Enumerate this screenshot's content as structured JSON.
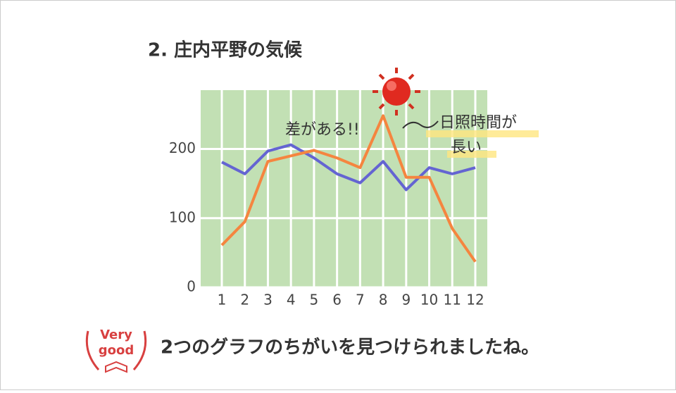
{
  "chart_data": {
    "type": "line",
    "title": "2. 庄内平野の気候",
    "categories": [
      "1",
      "2",
      "3",
      "4",
      "5",
      "6",
      "7",
      "8",
      "9",
      "10",
      "11",
      "12"
    ],
    "series": [
      {
        "color": "#6464d2",
        "values": [
          181,
          164,
          197,
          206,
          187,
          164,
          151,
          182,
          141,
          173,
          164,
          173
        ]
      },
      {
        "color": "#f5853f",
        "values": [
          61,
          95,
          182,
          190,
          198,
          187,
          173,
          248,
          159,
          159,
          85,
          37
        ]
      }
    ],
    "ylim": [
      0,
      285
    ],
    "yticks": [
      0,
      100,
      200
    ],
    "grid": true,
    "annotations": [
      "差がある!!",
      "日照時間が",
      "長い"
    ]
  },
  "stamp": [
    "Very",
    "good"
  ],
  "message": "2つのグラフのちがいを見つけられましたね。"
}
